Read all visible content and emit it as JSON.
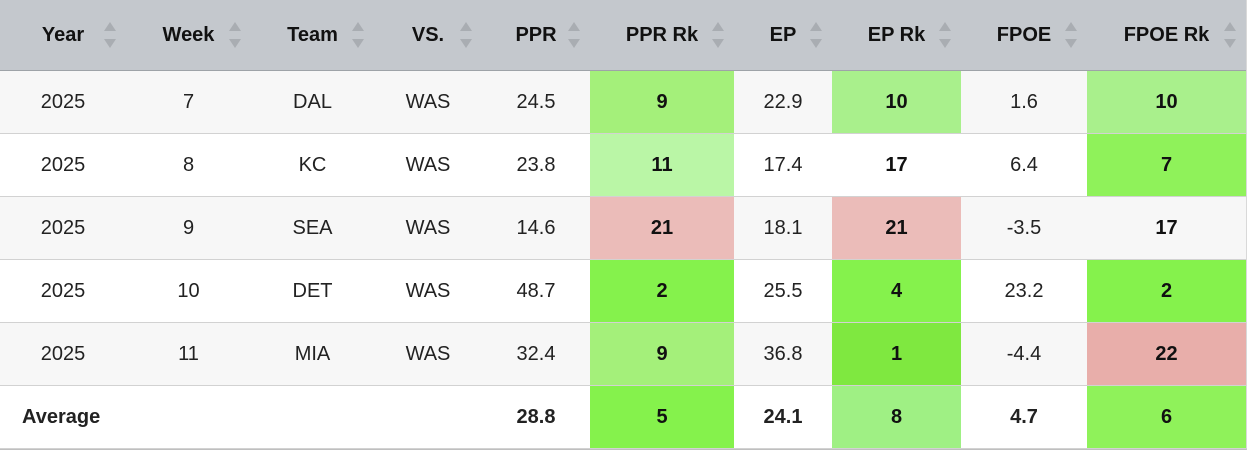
{
  "table": {
    "headers": [
      {
        "key": "year",
        "label": "Year"
      },
      {
        "key": "week",
        "label": "Week"
      },
      {
        "key": "team",
        "label": "Team"
      },
      {
        "key": "vs",
        "label": "VS."
      },
      {
        "key": "ppr",
        "label": "PPR"
      },
      {
        "key": "ppr_rk",
        "label": "PPR Rk"
      },
      {
        "key": "ep",
        "label": "EP"
      },
      {
        "key": "ep_rk",
        "label": "EP Rk"
      },
      {
        "key": "fpoe",
        "label": "FPOE"
      },
      {
        "key": "fpoe_rk",
        "label": "FPOE Rk"
      }
    ],
    "rows": [
      {
        "year": "2025",
        "week": "7",
        "team": "DAL",
        "vs": "WAS",
        "ppr": "24.5",
        "ppr_rk": "9",
        "ep": "22.9",
        "ep_rk": "10",
        "fpoe": "1.6",
        "fpoe_rk": "10"
      },
      {
        "year": "2025",
        "week": "8",
        "team": "KC",
        "vs": "WAS",
        "ppr": "23.8",
        "ppr_rk": "11",
        "ep": "17.4",
        "ep_rk": "17",
        "fpoe": "6.4",
        "fpoe_rk": "7"
      },
      {
        "year": "2025",
        "week": "9",
        "team": "SEA",
        "vs": "WAS",
        "ppr": "14.6",
        "ppr_rk": "21",
        "ep": "18.1",
        "ep_rk": "21",
        "fpoe": "-3.5",
        "fpoe_rk": "17"
      },
      {
        "year": "2025",
        "week": "10",
        "team": "DET",
        "vs": "WAS",
        "ppr": "48.7",
        "ppr_rk": "2",
        "ep": "25.5",
        "ep_rk": "4",
        "fpoe": "23.2",
        "fpoe_rk": "2"
      },
      {
        "year": "2025",
        "week": "11",
        "team": "MIA",
        "vs": "WAS",
        "ppr": "32.4",
        "ppr_rk": "9",
        "ep": "36.8",
        "ep_rk": "1",
        "fpoe": "-4.4",
        "fpoe_rk": "22"
      }
    ],
    "average": {
      "label": "Average",
      "ppr": "28.8",
      "ppr_rk": "5",
      "ep": "24.1",
      "ep_rk": "8",
      "fpoe": "4.7",
      "fpoe_rk": "6"
    },
    "cell_colors": {
      "rows": [
        {
          "ppr_rk": "#a4f07a",
          "ep_rk": "#a9f08c",
          "fpoe_rk": "#a9f08c"
        },
        {
          "ppr_rk": "#baf6a6",
          "ep_rk": "#ffffff",
          "fpoe_rk": "#8ff25a"
        },
        {
          "ppr_rk": "#ebbcb9",
          "ep_rk": "#ebbcb9",
          "fpoe_rk": "#f7f7f7"
        },
        {
          "ppr_rk": "#85f24c",
          "ep_rk": "#85f24c",
          "fpoe_rk": "#85f24c"
        },
        {
          "ppr_rk": "#a4f07a",
          "ep_rk": "#7fe840",
          "fpoe_rk": "#e8aeaa"
        }
      ],
      "average": {
        "ppr_rk": "#85f24c",
        "ep_rk": "#9ff084",
        "fpoe_rk": "#8ff25a"
      }
    }
  }
}
